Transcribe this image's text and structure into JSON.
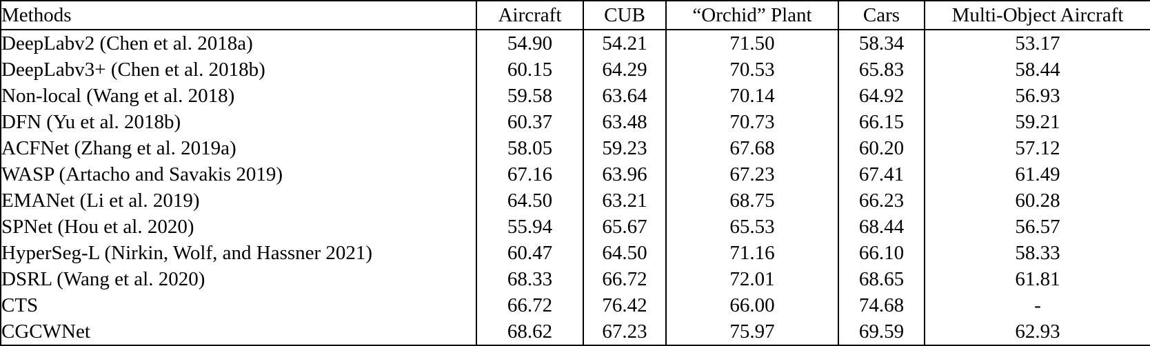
{
  "table": {
    "columns": [
      "Methods",
      "Aircraft",
      "CUB",
      "“Orchid” Plant",
      "Cars",
      "Multi-Object Aircraft"
    ],
    "rows": [
      {
        "method": "DeepLabv2 (Chen et al. 2018a)",
        "method_bold": false,
        "values": [
          "54.90",
          "54.21",
          "71.50",
          "58.34",
          "53.17"
        ],
        "bold": [
          false,
          false,
          false,
          false,
          false
        ]
      },
      {
        "method": "DeepLabv3+ (Chen et al. 2018b)",
        "method_bold": false,
        "values": [
          "60.15",
          "64.29",
          "70.53",
          "65.83",
          "58.44"
        ],
        "bold": [
          false,
          false,
          false,
          false,
          false
        ]
      },
      {
        "method": "Non-local (Wang et al. 2018)",
        "method_bold": false,
        "values": [
          "59.58",
          "63.64",
          "70.14",
          "64.92",
          "56.93"
        ],
        "bold": [
          false,
          false,
          false,
          false,
          false
        ]
      },
      {
        "method": "DFN (Yu et al. 2018b)",
        "method_bold": false,
        "values": [
          "60.37",
          "63.48",
          "70.73",
          "66.15",
          "59.21"
        ],
        "bold": [
          false,
          false,
          false,
          false,
          false
        ]
      },
      {
        "method": "ACFNet (Zhang et al. 2019a)",
        "method_bold": false,
        "values": [
          "58.05",
          "59.23",
          "67.68",
          "60.20",
          "57.12"
        ],
        "bold": [
          false,
          false,
          false,
          false,
          false
        ]
      },
      {
        "method": "WASP (Artacho and Savakis 2019)",
        "method_bold": false,
        "values": [
          "67.16",
          "63.96",
          "67.23",
          "67.41",
          "61.49"
        ],
        "bold": [
          false,
          false,
          false,
          false,
          false
        ]
      },
      {
        "method": "EMANet (Li et al. 2019)",
        "method_bold": false,
        "values": [
          "64.50",
          "63.21",
          "68.75",
          "66.23",
          "60.28"
        ],
        "bold": [
          false,
          false,
          false,
          false,
          false
        ]
      },
      {
        "method": "SPNet (Hou et al. 2020)",
        "method_bold": false,
        "values": [
          "55.94",
          "65.67",
          "65.53",
          "68.44",
          "56.57"
        ],
        "bold": [
          false,
          false,
          false,
          false,
          false
        ]
      },
      {
        "method": "HyperSeg-L (Nirkin, Wolf, and Hassner 2021)",
        "method_bold": false,
        "values": [
          "60.47",
          "64.50",
          "71.16",
          "66.10",
          "58.33"
        ],
        "bold": [
          false,
          false,
          false,
          false,
          false
        ]
      },
      {
        "method": "DSRL (Wang et al. 2020)",
        "method_bold": false,
        "values": [
          "68.33",
          "66.72",
          "72.01",
          "68.65",
          "61.81"
        ],
        "bold": [
          false,
          false,
          false,
          false,
          false
        ]
      },
      {
        "method": "CTS",
        "method_bold": true,
        "values": [
          "66.72",
          "76.42",
          "66.00",
          "74.68",
          "-"
        ],
        "bold": [
          false,
          true,
          false,
          true,
          false
        ]
      },
      {
        "method": "CGCWNet",
        "method_bold": true,
        "values": [
          "68.62",
          "67.23",
          "75.97",
          "69.59",
          "62.93"
        ],
        "bold": [
          true,
          false,
          true,
          false,
          true
        ]
      }
    ]
  }
}
